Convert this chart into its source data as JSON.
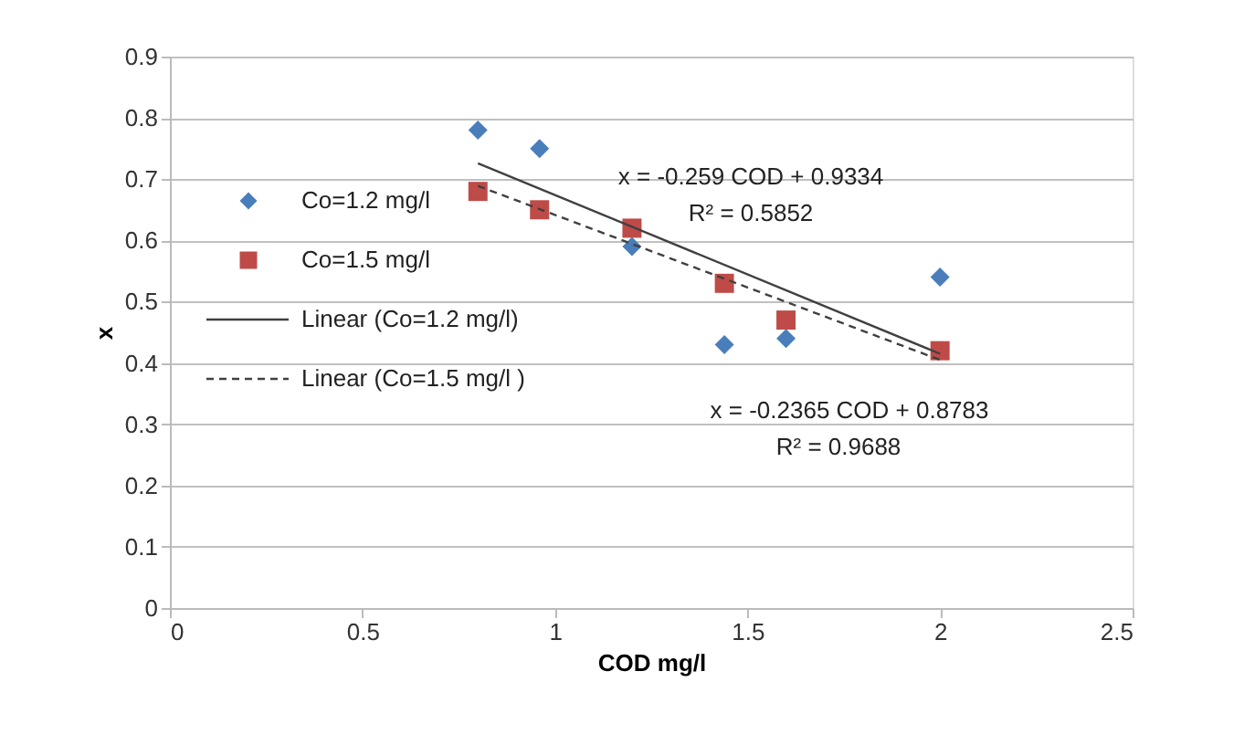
{
  "chart_data": {
    "type": "scatter",
    "xlabel": "COD  mg/l",
    "ylabel": "x",
    "xlim": [
      0,
      2.5
    ],
    "xticks": [
      0,
      0.5,
      1,
      1.5,
      2,
      2.5
    ],
    "ylim": [
      0,
      0.9
    ],
    "yticks": [
      0,
      0.1,
      0.2,
      0.3,
      0.4,
      0.5,
      0.6,
      0.7,
      0.8,
      0.9
    ],
    "grid": "y",
    "legend": "left",
    "series": [
      {
        "name": "Co=1.2 mg/l",
        "type": "scatter",
        "marker": "diamond",
        "color": "#4a7ebb",
        "x": [
          0.8,
          0.96,
          1.2,
          1.44,
          1.6,
          2.0
        ],
        "values": [
          0.78,
          0.75,
          0.59,
          0.43,
          0.44,
          0.54
        ]
      },
      {
        "name": "Co=1.5 mg/l",
        "type": "scatter",
        "marker": "square",
        "color": "#be4b48",
        "x": [
          0.8,
          0.96,
          1.2,
          1.44,
          1.6,
          2.0
        ],
        "values": [
          0.68,
          0.65,
          0.62,
          0.53,
          0.47,
          0.42
        ]
      },
      {
        "name": "Linear (Co=1.2 mg/l)",
        "type": "line",
        "line_style": "solid",
        "color": "#404040",
        "x": [
          0.8,
          2.0
        ],
        "values": [
          0.726,
          0.415
        ]
      },
      {
        "name": "Linear (Co=1.5 mg/l )",
        "type": "line",
        "line_style": "dashed",
        "color": "#404040",
        "x": [
          0.8,
          2.0
        ],
        "values": [
          0.689,
          0.405
        ]
      }
    ],
    "annotations": [
      "x = -0.259 COD + 0.9334",
      "R² = 0.5852",
      "x = -0.2365 COD + 0.8783",
      "R² = 0.9688"
    ]
  }
}
